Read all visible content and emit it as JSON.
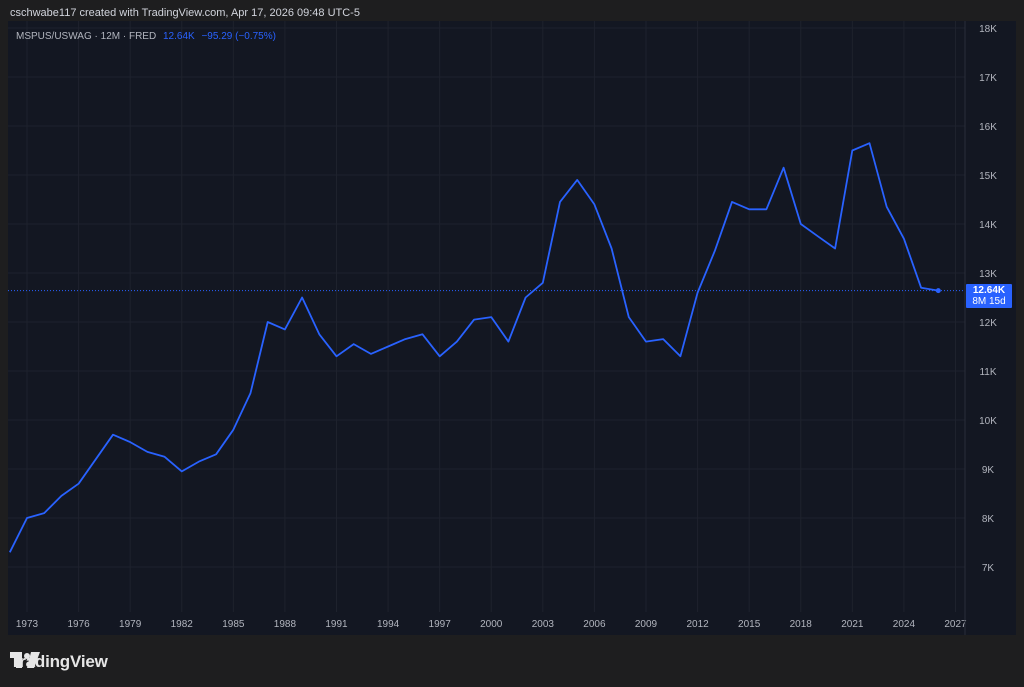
{
  "header": {
    "credit": "cschwabe117 created with TradingView.com, Apr 17, 2026 09:48 UTC-5"
  },
  "legend": {
    "symbol": "MSPUS/USWAG · 12M · FRED",
    "value": "12.64K",
    "change": "−95.29 (−0.75%)"
  },
  "last_price": {
    "value": "12.64K",
    "countdown": "8M 15d"
  },
  "footer": {
    "brand": "TradingView",
    "logo_icon": "tradingview-logo-icon"
  },
  "colors": {
    "line": "#2962ff",
    "background": "#131722",
    "grid": "#1e222d",
    "text": "#b2b5be"
  },
  "chart_data": {
    "type": "line",
    "title": "",
    "xlabel": "",
    "ylabel": "",
    "x_ticks": [
      "1973",
      "1976",
      "1979",
      "1982",
      "1985",
      "1988",
      "1991",
      "1994",
      "1997",
      "2000",
      "2003",
      "2006",
      "2009",
      "2012",
      "2015",
      "2018",
      "2021",
      "2024",
      "2027"
    ],
    "y_ticks": [
      "7K",
      "8K",
      "9K",
      "10K",
      "11K",
      "12K",
      "13K",
      "14K",
      "15K",
      "16K",
      "17K",
      "18K"
    ],
    "xlim": [
      1972.5,
      2027.2
    ],
    "ylim": [
      6200,
      18000
    ],
    "grid": true,
    "series": [
      {
        "x": [
          1972,
          1973,
          1974,
          1975,
          1976,
          1977,
          1978,
          1979,
          1980,
          1981,
          1982,
          1983,
          1984,
          1985,
          1986,
          1987,
          1988,
          1989,
          1990,
          1991,
          1992,
          1993,
          1994,
          1995,
          1996,
          1997,
          1998,
          1999,
          2000,
          2001,
          2002,
          2003,
          2004,
          2005,
          2006,
          2007,
          2008,
          2009,
          2010,
          2011,
          2012,
          2013,
          2014,
          2015,
          2016,
          2017,
          2018,
          2019,
          2020,
          2021,
          2022,
          2023,
          2024,
          2025,
          2026
        ],
        "values": [
          7300,
          8000,
          8100,
          8450,
          8700,
          9200,
          9700,
          9550,
          9350,
          9250,
          8950,
          9150,
          9300,
          9800,
          10550,
          12000,
          11850,
          12500,
          11750,
          11300,
          11550,
          11350,
          11500,
          11650,
          11750,
          11300,
          11600,
          12050,
          12100,
          11600,
          12500,
          12800,
          14450,
          14900,
          14400,
          13500,
          12100,
          11600,
          11650,
          11300,
          12600,
          13450,
          14450,
          14300,
          14300,
          15150,
          14000,
          13750,
          13500,
          15500,
          15650,
          14350,
          13700,
          12700,
          12640
        ]
      }
    ],
    "last_value": 12640
  }
}
